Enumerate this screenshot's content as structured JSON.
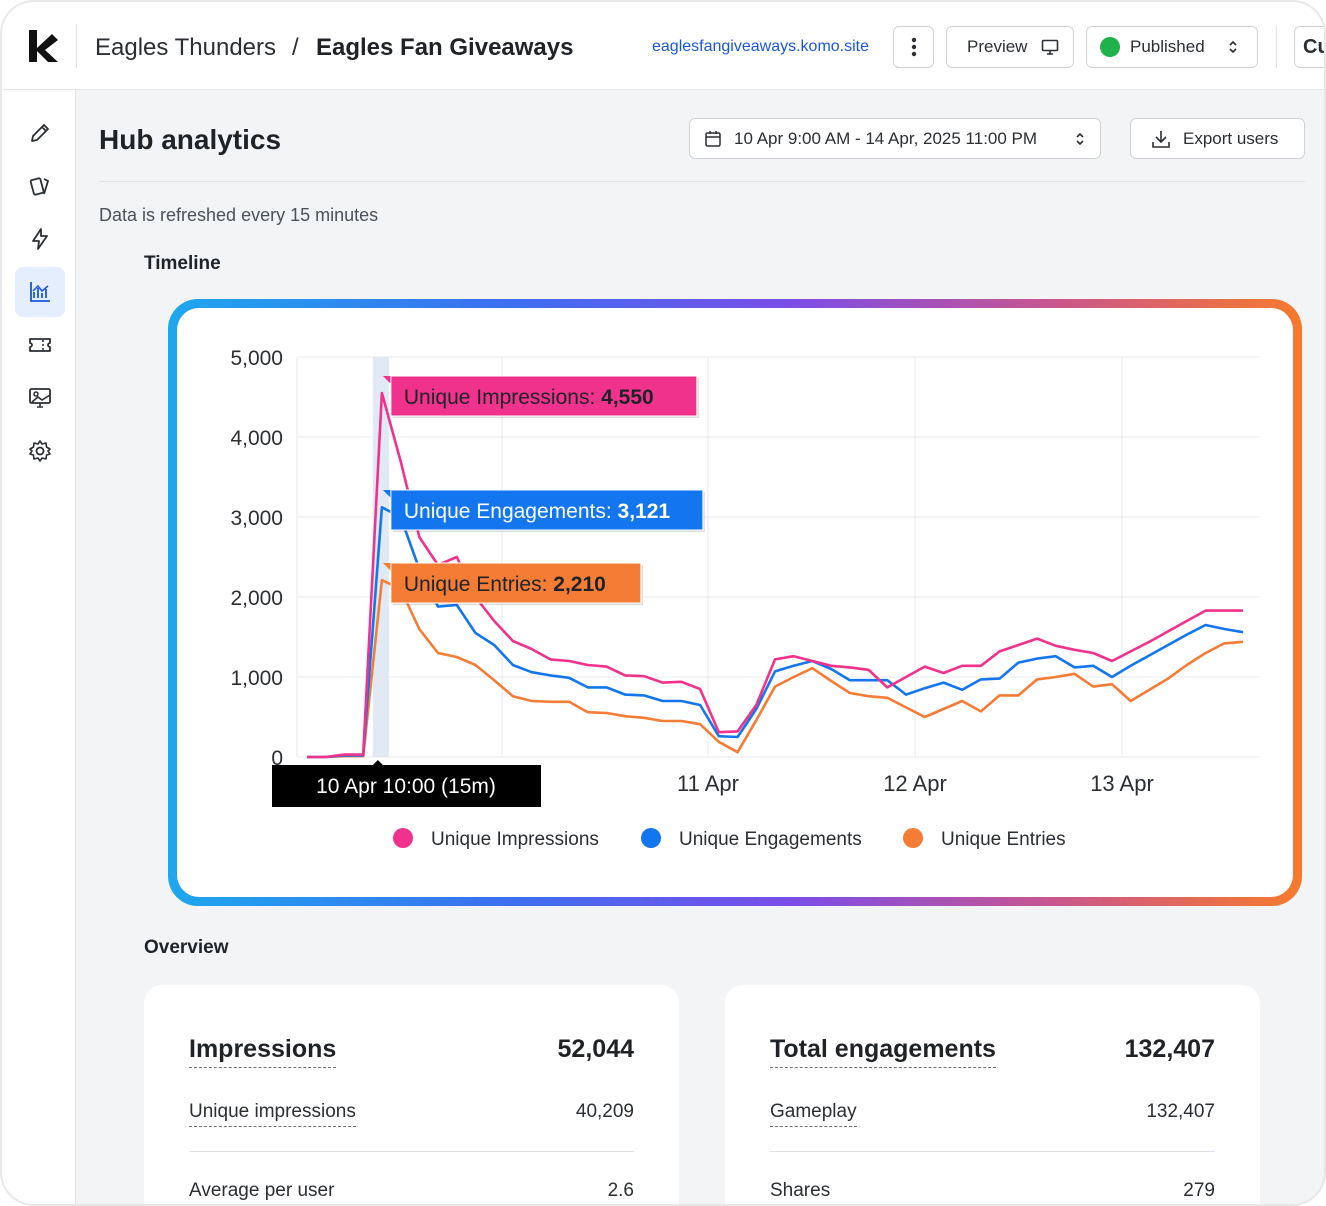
{
  "header": {
    "workspace": "Eagles Thunders",
    "separator": "/",
    "hub_name": "Eagles Fan Giveaways",
    "site_url": "eaglesfangiveaways.komo.site",
    "preview_label": "Preview",
    "status_label": "Published",
    "status_color": "#1fb24a",
    "cut_button_label": "Cu"
  },
  "sidebar": {
    "items": [
      {
        "icon": "pencil-icon",
        "active": false
      },
      {
        "icon": "cards-icon",
        "active": false
      },
      {
        "icon": "lightning-icon",
        "active": false
      },
      {
        "icon": "analytics-icon",
        "active": true
      },
      {
        "icon": "ticket-icon",
        "active": false
      },
      {
        "icon": "monitor-image-icon",
        "active": false
      },
      {
        "icon": "gear-icon",
        "active": false
      }
    ]
  },
  "main": {
    "title": "Hub analytics",
    "date_range": "10 Apr 9:00 AM -  14 Apr, 2025 11:00 PM",
    "export_label": "Export users",
    "refresh_note": "Data is refreshed every 15 minutes",
    "timeline_title": "Timeline",
    "overview_title": "Overview"
  },
  "chart_data": {
    "type": "line",
    "y_ticks": [
      "5,000",
      "4,000",
      "3,000",
      "2,000",
      "1,000",
      "0"
    ],
    "x_ticks": [
      "11 Apr",
      "12 Apr",
      "13 Apr"
    ],
    "ylim": [
      0,
      5000
    ],
    "grid": true,
    "legend_position": "bottom",
    "hover_label": "10 Apr 10:00 (15m)",
    "series": [
      {
        "name": "Unique Impressions",
        "color": "#f0328c",
        "tooltip_label": "Unique Impressions: ",
        "tooltip_value": "4,550",
        "values": [
          0,
          0,
          30,
          30,
          4550,
          3700,
          2750,
          2400,
          2500,
          2000,
          1700,
          1450,
          1350,
          1220,
          1200,
          1150,
          1130,
          1020,
          1010,
          930,
          940,
          850,
          310,
          320,
          650,
          1220,
          1260,
          1200,
          1140,
          1120,
          1090,
          870,
          1000,
          1130,
          1050,
          1140,
          1140,
          1320,
          1400,
          1480,
          1390,
          1340,
          1300,
          1200,
          1320,
          1440,
          1570,
          1700,
          1830,
          1830,
          1830
        ]
      },
      {
        "name": "Unique Engagements",
        "color": "#1476ee",
        "tooltip_label": "Unique Engagements: ",
        "tooltip_value": "3,121",
        "values": [
          0,
          0,
          20,
          20,
          3121,
          3000,
          2350,
          1880,
          1900,
          1550,
          1400,
          1150,
          1060,
          1020,
          990,
          870,
          870,
          780,
          770,
          700,
          700,
          650,
          260,
          250,
          600,
          1070,
          1140,
          1200,
          1100,
          960,
          960,
          960,
          780,
          860,
          930,
          840,
          970,
          980,
          1180,
          1230,
          1260,
          1120,
          1140,
          1000,
          1140,
          1270,
          1400,
          1530,
          1650,
          1600,
          1560
        ]
      },
      {
        "name": "Unique Entries",
        "color": "#f47c35",
        "tooltip_label": "Unique Entries: ",
        "tooltip_value": "2,210",
        "values": [
          0,
          0,
          10,
          10,
          2210,
          2100,
          1600,
          1300,
          1250,
          1150,
          960,
          760,
          700,
          690,
          690,
          560,
          550,
          510,
          490,
          450,
          450,
          410,
          190,
          60,
          460,
          880,
          1000,
          1110,
          950,
          800,
          760,
          740,
          620,
          500,
          600,
          700,
          570,
          770,
          770,
          970,
          1000,
          1040,
          880,
          910,
          700,
          840,
          980,
          1150,
          1300,
          1420,
          1440
        ]
      }
    ]
  },
  "overview": {
    "cards": [
      {
        "title": "Impressions",
        "total": "52,044",
        "row1_label": "Unique impressions",
        "row1_value": "40,209",
        "row2_label": "Average per user",
        "row2_value": "2.6"
      },
      {
        "title": "Total engagements",
        "total": "132,407",
        "row1_label": "Gameplay",
        "row1_value": "132,407",
        "row2_label": "Shares",
        "row2_value": "279"
      }
    ]
  }
}
